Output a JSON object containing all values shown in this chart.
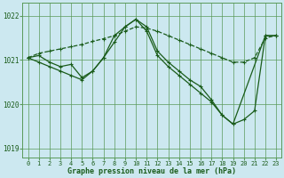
{
  "title": "Graphe pression niveau de la mer (hPa)",
  "bg_color": "#cce8f0",
  "grid_color": "#5a9a5a",
  "line_color": "#1a5c1a",
  "xlim": [
    -0.5,
    23.5
  ],
  "ylim": [
    1018.8,
    1022.3
  ],
  "yticks": [
    1019,
    1020,
    1021,
    1022
  ],
  "xticks": [
    0,
    1,
    2,
    3,
    4,
    5,
    6,
    7,
    8,
    9,
    10,
    11,
    12,
    13,
    14,
    15,
    16,
    17,
    18,
    19,
    20,
    21,
    22,
    23
  ],
  "series": [
    {
      "x": [
        0,
        1,
        2,
        3,
        4,
        5,
        6,
        7,
        8,
        9,
        10,
        11,
        12,
        13,
        14,
        15,
        16,
        17,
        18,
        19,
        20,
        21,
        22,
        23
      ],
      "y": [
        1021.05,
        1021.15,
        1021.2,
        1021.25,
        1021.3,
        1021.35,
        1021.42,
        1021.48,
        1021.55,
        1021.65,
        1021.75,
        1021.72,
        1021.65,
        1021.55,
        1021.45,
        1021.35,
        1021.25,
        1021.15,
        1021.05,
        1020.95,
        1020.95,
        1021.05,
        1021.5,
        1021.55
      ],
      "linestyle": "--",
      "linewidth": 0.9,
      "marker": "+"
    },
    {
      "x": [
        0,
        1,
        2,
        3,
        4,
        5,
        6,
        7,
        8,
        9,
        10,
        11,
        12,
        13,
        14,
        15,
        16,
        17,
        18,
        19,
        20,
        21,
        22,
        23
      ],
      "y": [
        1021.05,
        1021.1,
        1020.95,
        1020.85,
        1020.9,
        1020.6,
        1020.75,
        1021.05,
        1021.4,
        1021.75,
        1021.92,
        1021.75,
        1021.2,
        1020.95,
        1020.75,
        1020.55,
        1020.4,
        1020.1,
        1019.75,
        1019.55,
        1019.65,
        1019.85,
        1021.55,
        1021.55
      ],
      "linestyle": "-",
      "linewidth": 0.9,
      "marker": "+"
    },
    {
      "x": [
        0,
        1,
        2,
        3,
        4,
        5,
        6,
        7,
        8,
        9,
        10,
        11,
        12,
        13,
        14,
        15,
        16,
        17,
        18,
        19,
        22,
        23
      ],
      "y": [
        1021.05,
        1020.95,
        1020.85,
        1020.75,
        1020.65,
        1020.55,
        1020.75,
        1021.05,
        1021.55,
        1021.75,
        1021.92,
        1021.65,
        1021.1,
        1020.85,
        1020.65,
        1020.45,
        1020.25,
        1020.05,
        1019.75,
        1019.55,
        1021.55,
        1021.55
      ],
      "linestyle": "-",
      "linewidth": 0.9,
      "marker": "+"
    }
  ]
}
